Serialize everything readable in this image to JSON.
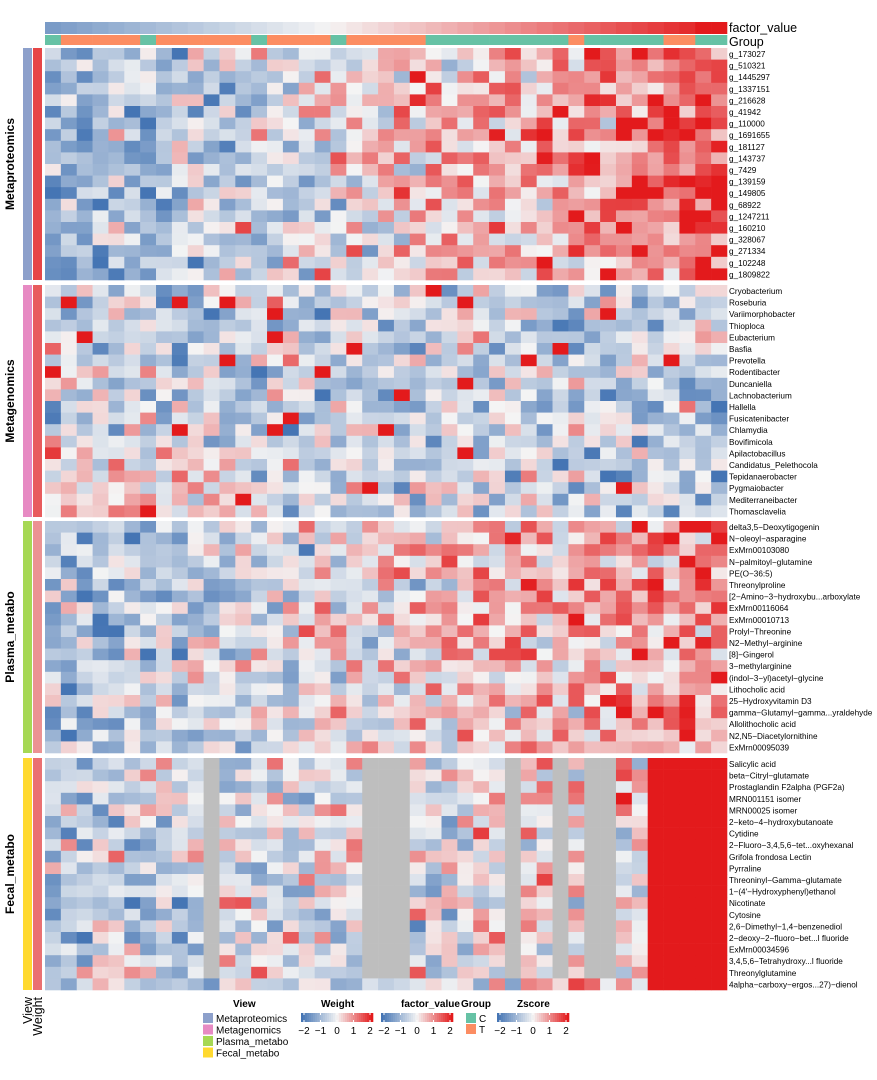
{
  "chart_data": {
    "type": "heatmap",
    "column_annotations": [
      "factor_value",
      "Group"
    ],
    "row_annotation_labels": [
      "View",
      "Weight"
    ],
    "groups": [
      "C",
      "T"
    ],
    "group_colors": {
      "C": "#66c2a5",
      "T": "#fc8d62"
    },
    "column_groups": [
      "C",
      "T",
      "T",
      "T",
      "T",
      "T",
      "C",
      "T",
      "T",
      "T",
      "T",
      "T",
      "T",
      "C",
      "T",
      "T",
      "T",
      "T",
      "C",
      "T",
      "T",
      "T",
      "T",
      "T",
      "C",
      "C",
      "C",
      "C",
      "C",
      "C",
      "C",
      "C",
      "C",
      "T",
      "C",
      "C",
      "C",
      "C",
      "C",
      "T",
      "T",
      "C",
      "C"
    ],
    "view_colors": {
      "Metaproteomics": "#8da0cb",
      "Metagenomics": "#e78ac3",
      "Plasma_metabo": "#a6d854",
      "Fecal_metabo": "#ffd92f"
    },
    "zscore_colors": {
      "low": "#4575b4",
      "mid": "#f4f4f4",
      "high": "#e31a1c",
      "missing": "#bebebe"
    },
    "legends": [
      {
        "title": "View",
        "entries": [
          "Metaproteomics",
          "Metagenomics",
          "Plasma_metabo",
          "Fecal_metabo"
        ]
      },
      {
        "title": "Weight",
        "ticks": [
          "−2",
          "−1",
          "0",
          "1",
          "2"
        ]
      },
      {
        "title": "factor_value",
        "ticks": [
          "−2",
          "−1",
          "0",
          "1",
          "2"
        ]
      },
      {
        "title": "Group",
        "entries": [
          "C",
          "T"
        ]
      },
      {
        "title": "Zscore",
        "ticks": [
          "−2",
          "−1",
          "0",
          "1",
          "2"
        ]
      }
    ],
    "views": [
      {
        "name": "Metaproteomics",
        "weight": 1.6,
        "rows": [
          "g_173027",
          "g_510321",
          "g_1445297",
          "g_1337151",
          "g_216628",
          "g_41942",
          "g_110000",
          "g_1691655",
          "g_181127",
          "g_143737",
          "g_7429",
          "g_139159",
          "g_149805",
          "g_68922",
          "g_1247211",
          "g_160210",
          "g_328067",
          "g_271334",
          "g_102248",
          "g_1809822"
        ]
      },
      {
        "name": "Metagenomics",
        "weight": 1.4,
        "rows": [
          "Cryobacterium",
          "Roseburia",
          "Variimorphobacter",
          "Thioploca",
          "Eubacterium",
          "Basfia",
          "Prevotella",
          "Rodentibacter",
          "Duncaniella",
          "Lachnobacterium",
          "Hallella",
          "Fusicatenibacter",
          "Chlamydia",
          "Bovifimicola",
          "Apilactobacillus",
          "Candidatus_Pelethocola",
          "Tepidanaerobacter",
          "Pygmaiobacter",
          "Mediterraneibacter",
          "Thomasclavelia"
        ]
      },
      {
        "name": "Plasma_metabo",
        "weight": 0.9,
        "rows": [
          "delta3,5−Deoxytigogenin",
          "N−oleoyl−asparagine",
          "ExMrn00103080",
          "N−palmitoyl−glutamine",
          "PE(O−36:5)",
          "Threonylproline",
          "[2−Amino−3−hydroxybu...arboxylate",
          "ExMrn00116064",
          "ExMrn00010713",
          "Prolyl−Threonine",
          "N2−Methyl−arginine",
          "[8]−Gingerol",
          "3−methylarginine",
          "(indol−3−yl)acetyl−glycine",
          "Lithocholic acid",
          "25−Hydroxyvitamin D3",
          "gamma−Glutamyl−gamma...yraldehyde",
          "Allolithocholic acid",
          "N2,N5−Diacetylornithine",
          "ExMrn00095039"
        ]
      },
      {
        "name": "Fecal_metabo",
        "weight": 1.2,
        "rows": [
          "Salicylic acid",
          "beta−Citryl−glutamate",
          "Prostaglandin F2alpha (PGF2a)",
          "MRN001151 isomer",
          "MRN00025 isomer",
          "2−keto−4−hydroxybutanoate",
          "Cytidine",
          "2−Fluoro−3,4,5,6−tet...oxyhexanal",
          "Grifola frondosa Lectin",
          "Pyrraline",
          "Threoninyl−Gamma−glutamate",
          "1−(4'−Hydroxyphenyl)ethanol",
          "Nicotinate",
          "Cytosine",
          "2,6−Dimethyl−1,4−benzenediol",
          "2−deoxy−2−fluoro−bet...l fluoride",
          "ExMrn00034596",
          "3,4,5,6−Tetrahydroxy...l fluoride",
          "Threonylglutamine",
          "4alpha−carboxy−ergos...27)−dienol"
        ]
      }
    ],
    "missing_columns_fecal": [
      10,
      20,
      21,
      22,
      29,
      32,
      34,
      35
    ],
    "n_columns": 43
  }
}
